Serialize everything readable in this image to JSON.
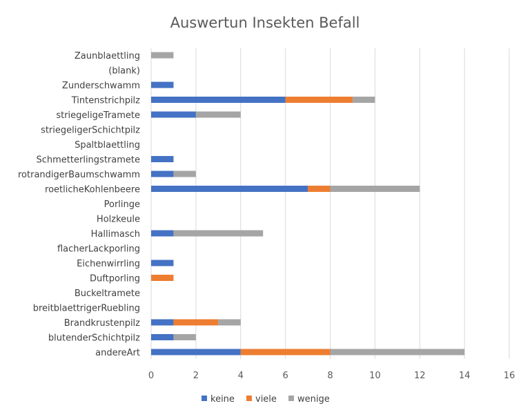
{
  "chart_data": {
    "type": "bar",
    "orientation": "horizontal",
    "stacked": true,
    "title": "Auswertun Insekten Befall",
    "categories": [
      "Zaunblaettling",
      "(blank)",
      "Zunderschwamm",
      "Tintenstrichpilz",
      "striegeligeTramete",
      "striegeligerSchichtpilz",
      "Spaltblaettling",
      "Schmetterlingstramete",
      "rotrandigerBaumschwamm",
      "roetlicheKohlenbeere",
      "Porlinge",
      "Holzkeule",
      "Hallimasch",
      "flacherLackporling",
      "Eichenwirrling",
      "Duftporling",
      "Buckeltramete",
      "breitblaettrigerRuebling",
      "Brandkrustenpilz",
      "blutenderSchichtpilz",
      "andereArt"
    ],
    "series": [
      {
        "name": "keine",
        "color": "#4472c4",
        "values": [
          0,
          0,
          1,
          6,
          2,
          0,
          0,
          1,
          1,
          7,
          0,
          0,
          1,
          0,
          1,
          0,
          0,
          0,
          1,
          1,
          4
        ]
      },
      {
        "name": "viele",
        "color": "#ed7d31",
        "values": [
          0,
          0,
          0,
          3,
          0,
          0,
          0,
          0,
          0,
          1,
          0,
          0,
          0,
          0,
          0,
          1,
          0,
          0,
          2,
          0,
          4
        ]
      },
      {
        "name": "wenige",
        "color": "#a5a5a5",
        "values": [
          1,
          0,
          0,
          1,
          2,
          0,
          0,
          0,
          1,
          4,
          0,
          0,
          4,
          0,
          0,
          0,
          0,
          0,
          1,
          1,
          6
        ]
      }
    ],
    "xlim": [
      0,
      16
    ],
    "xticks": [
      "0",
      "2",
      "4",
      "6",
      "8",
      "10",
      "12",
      "14",
      "16"
    ],
    "grid": true,
    "legend_position": "bottom"
  }
}
